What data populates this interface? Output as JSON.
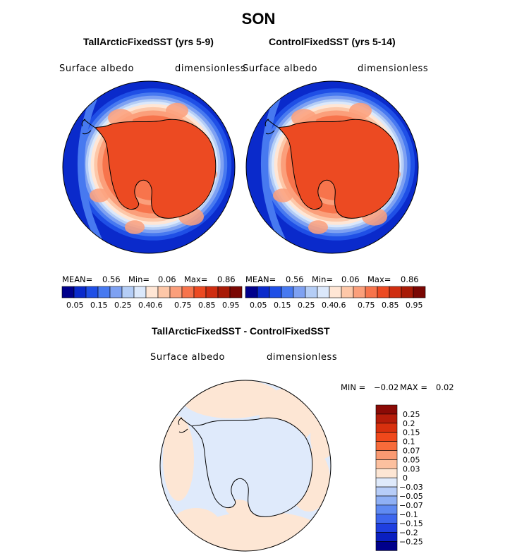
{
  "figure_title": "SON",
  "panels": [
    {
      "title": "TallArcticFixedSST (yrs 5-9)",
      "variable": "Surface albedo",
      "units": "dimensionless",
      "stats": {
        "mean_label": "MEAN=",
        "mean": "0.56",
        "min_label": "Min=",
        "min": "0.06",
        "max_label": "Max=",
        "max": "0.86"
      }
    },
    {
      "title": "ControlFixedSST (yrs 5-14)",
      "variable": "Surface albedo",
      "units": "dimensionless",
      "stats": {
        "mean_label": "MEAN=",
        "mean": "0.56",
        "min_label": "Min=",
        "min": "0.06",
        "max_label": "Max=",
        "max": "0.86"
      }
    }
  ],
  "diff_panel": {
    "title": "TallArcticFixedSST - ControlFixedSST",
    "variable": "Surface albedo",
    "units": "dimensionless",
    "stats": {
      "min_label": "MIN =",
      "min": "−0.02",
      "max_label": "MAX =",
      "max": "0.02"
    }
  },
  "chart_data": [
    {
      "type": "heatmap",
      "projection": "south-polar-stereographic",
      "title": "TallArcticFixedSST (yrs 5-9)",
      "variable": "Surface albedo",
      "units": "dimensionless",
      "mean": 0.56,
      "min": 0.06,
      "max": 0.86,
      "colorbar": {
        "labels": [
          "0.05",
          "0.15",
          "0.25",
          "0.4",
          "0.6",
          "0.75",
          "0.85",
          "0.95"
        ],
        "colors": [
          "#00008b",
          "#0a2acb",
          "#1f4fe6",
          "#4779f0",
          "#7ea1f2",
          "#b4cdf6",
          "#dbe8fb",
          "#ffe6d5",
          "#fdc7a8",
          "#fb9f7b",
          "#f7744c",
          "#ec4a22",
          "#cf2d10",
          "#a81a06",
          "#7a0703"
        ]
      }
    },
    {
      "type": "heatmap",
      "projection": "south-polar-stereographic",
      "title": "ControlFixedSST (yrs 5-14)",
      "variable": "Surface albedo",
      "units": "dimensionless",
      "mean": 0.56,
      "min": 0.06,
      "max": 0.86,
      "colorbar": {
        "labels": [
          "0.05",
          "0.15",
          "0.25",
          "0.4",
          "0.6",
          "0.75",
          "0.85",
          "0.95"
        ],
        "colors": [
          "#00008b",
          "#0a2acb",
          "#1f4fe6",
          "#4779f0",
          "#7ea1f2",
          "#b4cdf6",
          "#dbe8fb",
          "#ffe6d5",
          "#fdc7a8",
          "#fb9f7b",
          "#f7744c",
          "#ec4a22",
          "#cf2d10",
          "#a81a06",
          "#7a0703"
        ]
      }
    },
    {
      "type": "heatmap",
      "projection": "south-polar-stereographic",
      "title": "TallArcticFixedSST - ControlFixedSST",
      "variable": "Surface albedo",
      "units": "dimensionless",
      "min": -0.02,
      "max": 0.02,
      "colorbar": {
        "labels": [
          "0.25",
          "0.2",
          "0.15",
          "0.1",
          "0.07",
          "0.05",
          "0.03",
          "0",
          "−0.03",
          "−0.05",
          "−0.07",
          "−0.1",
          "−0.15",
          "−0.2",
          "−0.25"
        ],
        "colors": [
          "#8b0a06",
          "#b51c0a",
          "#d8300e",
          "#f0481b",
          "#f76b3a",
          "#fa9a72",
          "#fcc09f",
          "#fde6d4",
          "#dfeafb",
          "#b7cdf8",
          "#8fb0f5",
          "#5f8af2",
          "#3d66ee",
          "#1f3fe0",
          "#0a1fc0",
          "#00008b"
        ]
      }
    }
  ]
}
